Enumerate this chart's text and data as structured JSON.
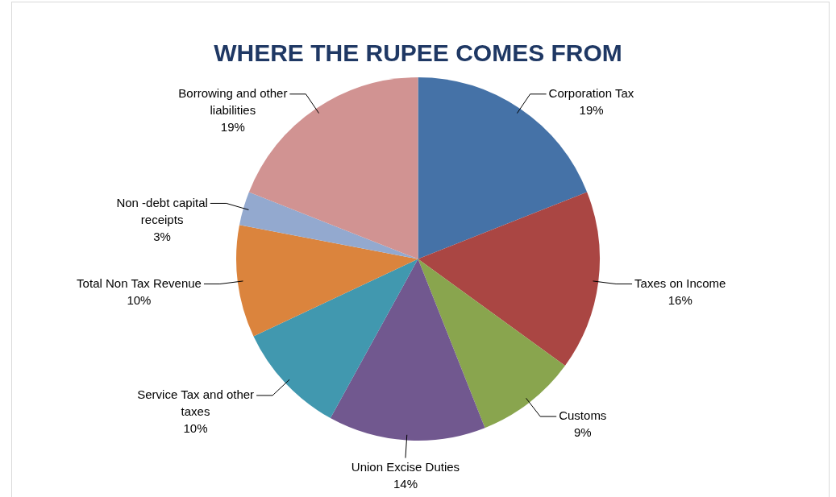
{
  "chart_data": {
    "type": "pie",
    "title": "WHERE THE RUPEE COMES FROM",
    "categories": [
      "Corporation Tax",
      "Taxes on Income",
      "Customs",
      "Union Excise Duties",
      "Service Tax and other taxes",
      "Total Non Tax Revenue",
      "Non -debt capital receipts",
      "Borrowing and other liabilities"
    ],
    "values": [
      19,
      16,
      9,
      14,
      10,
      10,
      3,
      19
    ],
    "colors": [
      "#4572a7",
      "#aa4643",
      "#89a54e",
      "#71588f",
      "#4198af",
      "#db843d",
      "#93a9cf",
      "#d19392"
    ],
    "value_labels": [
      "19%",
      "16%",
      "9%",
      "14%",
      "10%",
      "10%",
      "3%",
      "19%"
    ],
    "legend": false
  }
}
